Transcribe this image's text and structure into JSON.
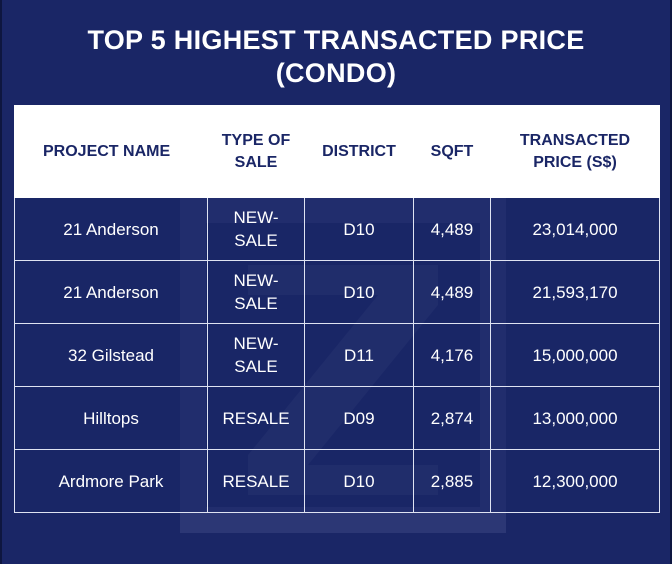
{
  "title": {
    "line1": "TOP 5 HIGHEST TRANSACTED PRICE",
    "line2": "(CONDO)"
  },
  "table": {
    "headers": {
      "project": "PROJECT NAME",
      "type_line1": "TYPE OF",
      "type_line2": "SALE",
      "district": "DISTRICT",
      "sqft": "SQFT",
      "price_line1": "TRANSACTED",
      "price_line2": "PRICE (S$)"
    },
    "rows": [
      {
        "project": "21 Anderson",
        "type": "NEW-SALE",
        "district": "D10",
        "sqft": "4,489",
        "price": "23,014,000"
      },
      {
        "project": "21 Anderson",
        "type": "NEW-SALE",
        "district": "D10",
        "sqft": "4,489",
        "price": "21,593,170"
      },
      {
        "project": "32 Gilstead",
        "type": "NEW-SALE",
        "district": "D11",
        "sqft": "4,176",
        "price": "15,000,000"
      },
      {
        "project": "Hilltops",
        "type": "RESALE",
        "district": "D09",
        "sqft": "2,874",
        "price": "13,000,000"
      },
      {
        "project": "Ardmore Park",
        "type": "RESALE",
        "district": "D10",
        "sqft": "2,885",
        "price": "12,300,000"
      }
    ]
  },
  "colors": {
    "background": "#1a2666",
    "header_bg": "#ffffff",
    "header_text": "#1a2666",
    "cell_text": "#ffffff"
  }
}
